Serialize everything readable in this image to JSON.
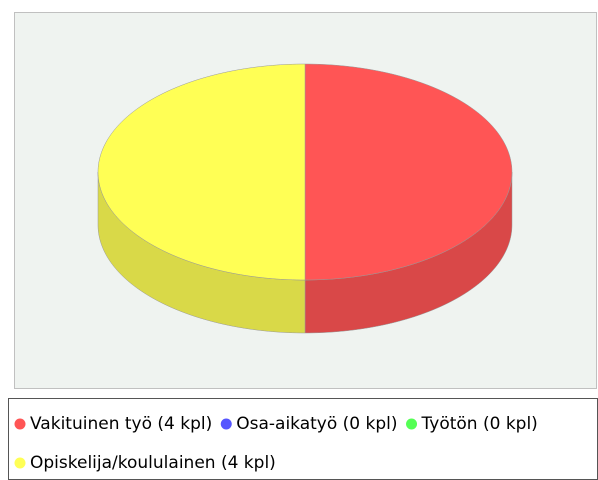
{
  "chart_data": {
    "type": "pie3d",
    "categories": [
      "Vakituinen työ (4 kpl)",
      "Osa-aikatyö (0 kpl)",
      "Työtön (0 kpl)",
      "Opiskelija/koululainen (4 kpl)"
    ],
    "values": [
      4,
      0,
      0,
      4
    ],
    "colors": [
      "#ff5555",
      "#5555ff",
      "#55ff55",
      "#ffff55"
    ],
    "legend": "bottom"
  }
}
